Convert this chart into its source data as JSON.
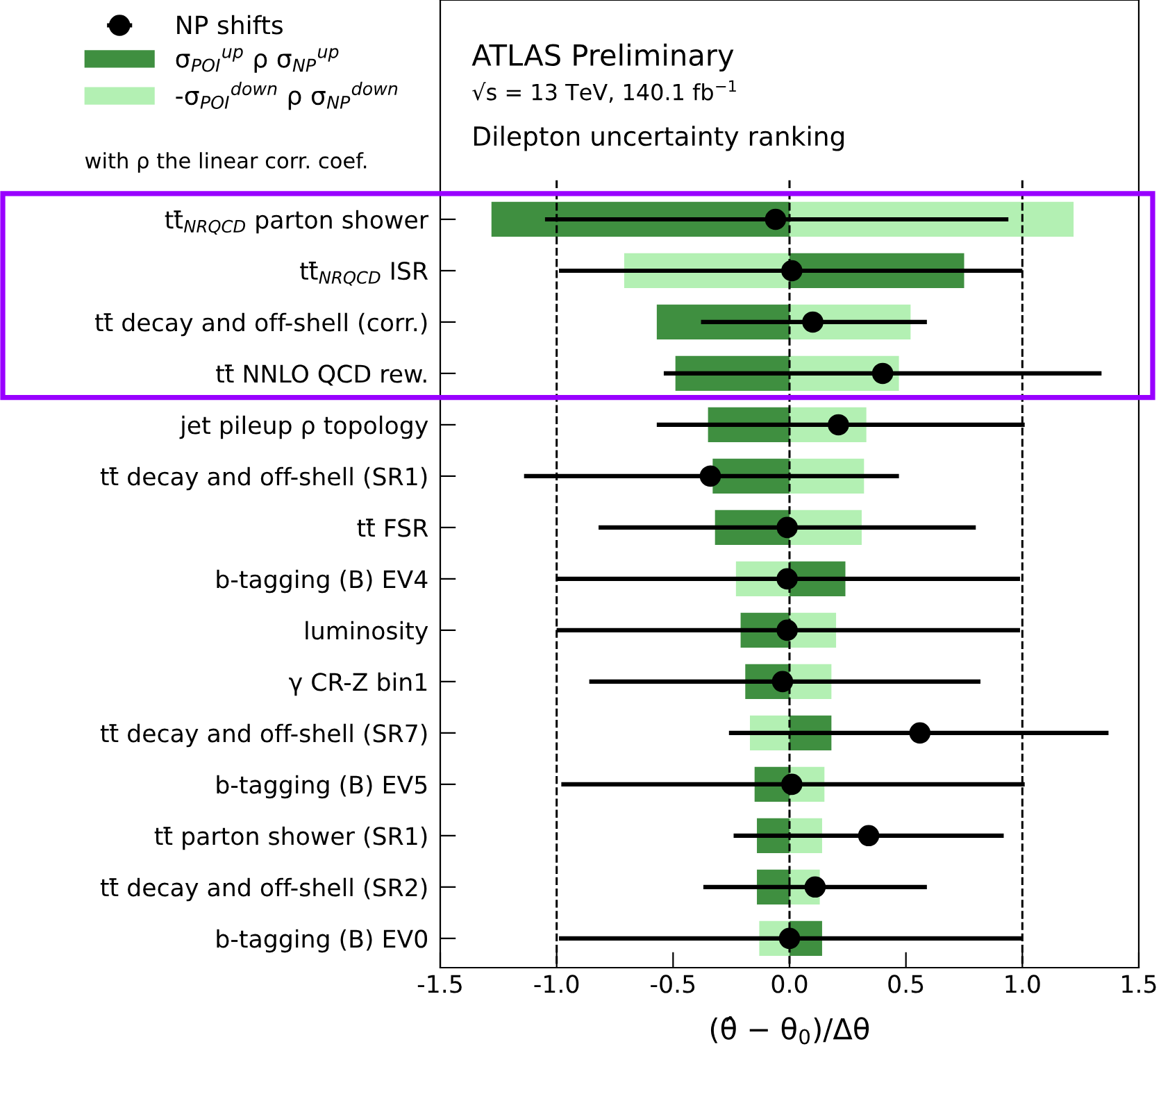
{
  "chart_data": {
    "type": "bar",
    "orientation": "horizontal",
    "title": "ATLAS Preliminary",
    "subtitle": "√s = 13 TeV, 140.1 fb$^{−1}$",
    "xlabel": "(θ̂ − θ$_{0}$)/Δθ",
    "annotations": [
      "Dilepton uncertainty ranking",
      "with ρ the linear corr. coef."
    ],
    "categories": [
      "tt̄$_{NRQCD}$ parton shower",
      "tt̄$_{NRQCD}$ ISR",
      "tt̄ decay and off-shell (corr.)",
      "tt̄ NNLO QCD rew.",
      "jet pileup ρ topology",
      "tt̄ decay and off-shell (SR1)",
      "tt̄ FSR",
      "b-tagging (B) EV4",
      "luminosity",
      "γ CR-Z bin1",
      "tt̄ decay and off-shell (SR7)",
      "b-tagging (B) EV5",
      "tt̄ parton shower (SR1)",
      "tt̄ decay and off-shell (SR2)",
      "b-tagging (B) EV0"
    ],
    "stacked": true,
    "series": [
      {
        "name": "σ$_{POI}$$^{up}$ ρ σ$_{NP}$$^{up}$",
        "color": "#3f8f40",
        "values": [
          -1.28,
          0.75,
          -0.57,
          -0.49,
          -0.35,
          -0.33,
          -0.32,
          0.24,
          -0.21,
          -0.19,
          0.18,
          -0.15,
          -0.14,
          -0.14,
          0.14
        ]
      },
      {
        "name": "-σ$_{POI}$$^{down}$ ρ σ$_{NP}$$^{down}$",
        "color": "#b3f0b3",
        "values": [
          1.22,
          -0.71,
          0.52,
          0.47,
          0.33,
          0.32,
          0.31,
          -0.23,
          0.2,
          0.18,
          -0.17,
          0.15,
          0.14,
          0.13,
          -0.13
        ]
      },
      {
        "name": "NP shifts",
        "type": "scatter",
        "color": "#000000",
        "marker": "circle",
        "values": [
          -0.06,
          0.01,
          0.1,
          0.4,
          0.21,
          -0.34,
          -0.01,
          -0.01,
          -0.01,
          -0.03,
          0.56,
          0.01,
          0.34,
          0.11,
          0.0
        ],
        "errors": [
          [
            -1.05,
            0.94
          ],
          [
            -0.99,
            1.0
          ],
          [
            -0.38,
            0.59
          ],
          [
            -0.54,
            1.34
          ],
          [
            -0.57,
            1.01
          ],
          [
            -1.14,
            0.47
          ],
          [
            -0.82,
            0.8
          ],
          [
            -1.0,
            0.99
          ],
          [
            -1.0,
            0.99
          ],
          [
            -0.86,
            0.82
          ],
          [
            -0.26,
            1.37
          ],
          [
            -0.98,
            1.01
          ],
          [
            -0.24,
            0.92
          ],
          [
            -0.37,
            0.59
          ],
          [
            -0.99,
            1.0
          ]
        ]
      }
    ],
    "xlim": [
      -1.5,
      1.5
    ],
    "xticks": [
      {
        "value": -1.5,
        "label": "-1.5"
      },
      {
        "value": -1.0,
        "label": "-1.0"
      },
      {
        "value": -0.5,
        "label": "-0.5"
      },
      {
        "value": 0.0,
        "label": "0.0"
      },
      {
        "value": 0.5,
        "label": "0.5"
      },
      {
        "value": 1.0,
        "label": "1.0"
      },
      {
        "value": 1.5,
        "label": "1.5"
      }
    ],
    "ref_lines": [
      {
        "axis": "x",
        "value": -1.0,
        "color": "#000000",
        "line_style": "dashed"
      },
      {
        "axis": "x",
        "value": 0.0,
        "color": "#000000",
        "line_style": "dashed"
      },
      {
        "axis": "x",
        "value": 1.0,
        "color": "#000000",
        "line_style": "dashed"
      }
    ],
    "grid": false,
    "legend": "top left"
  }
}
